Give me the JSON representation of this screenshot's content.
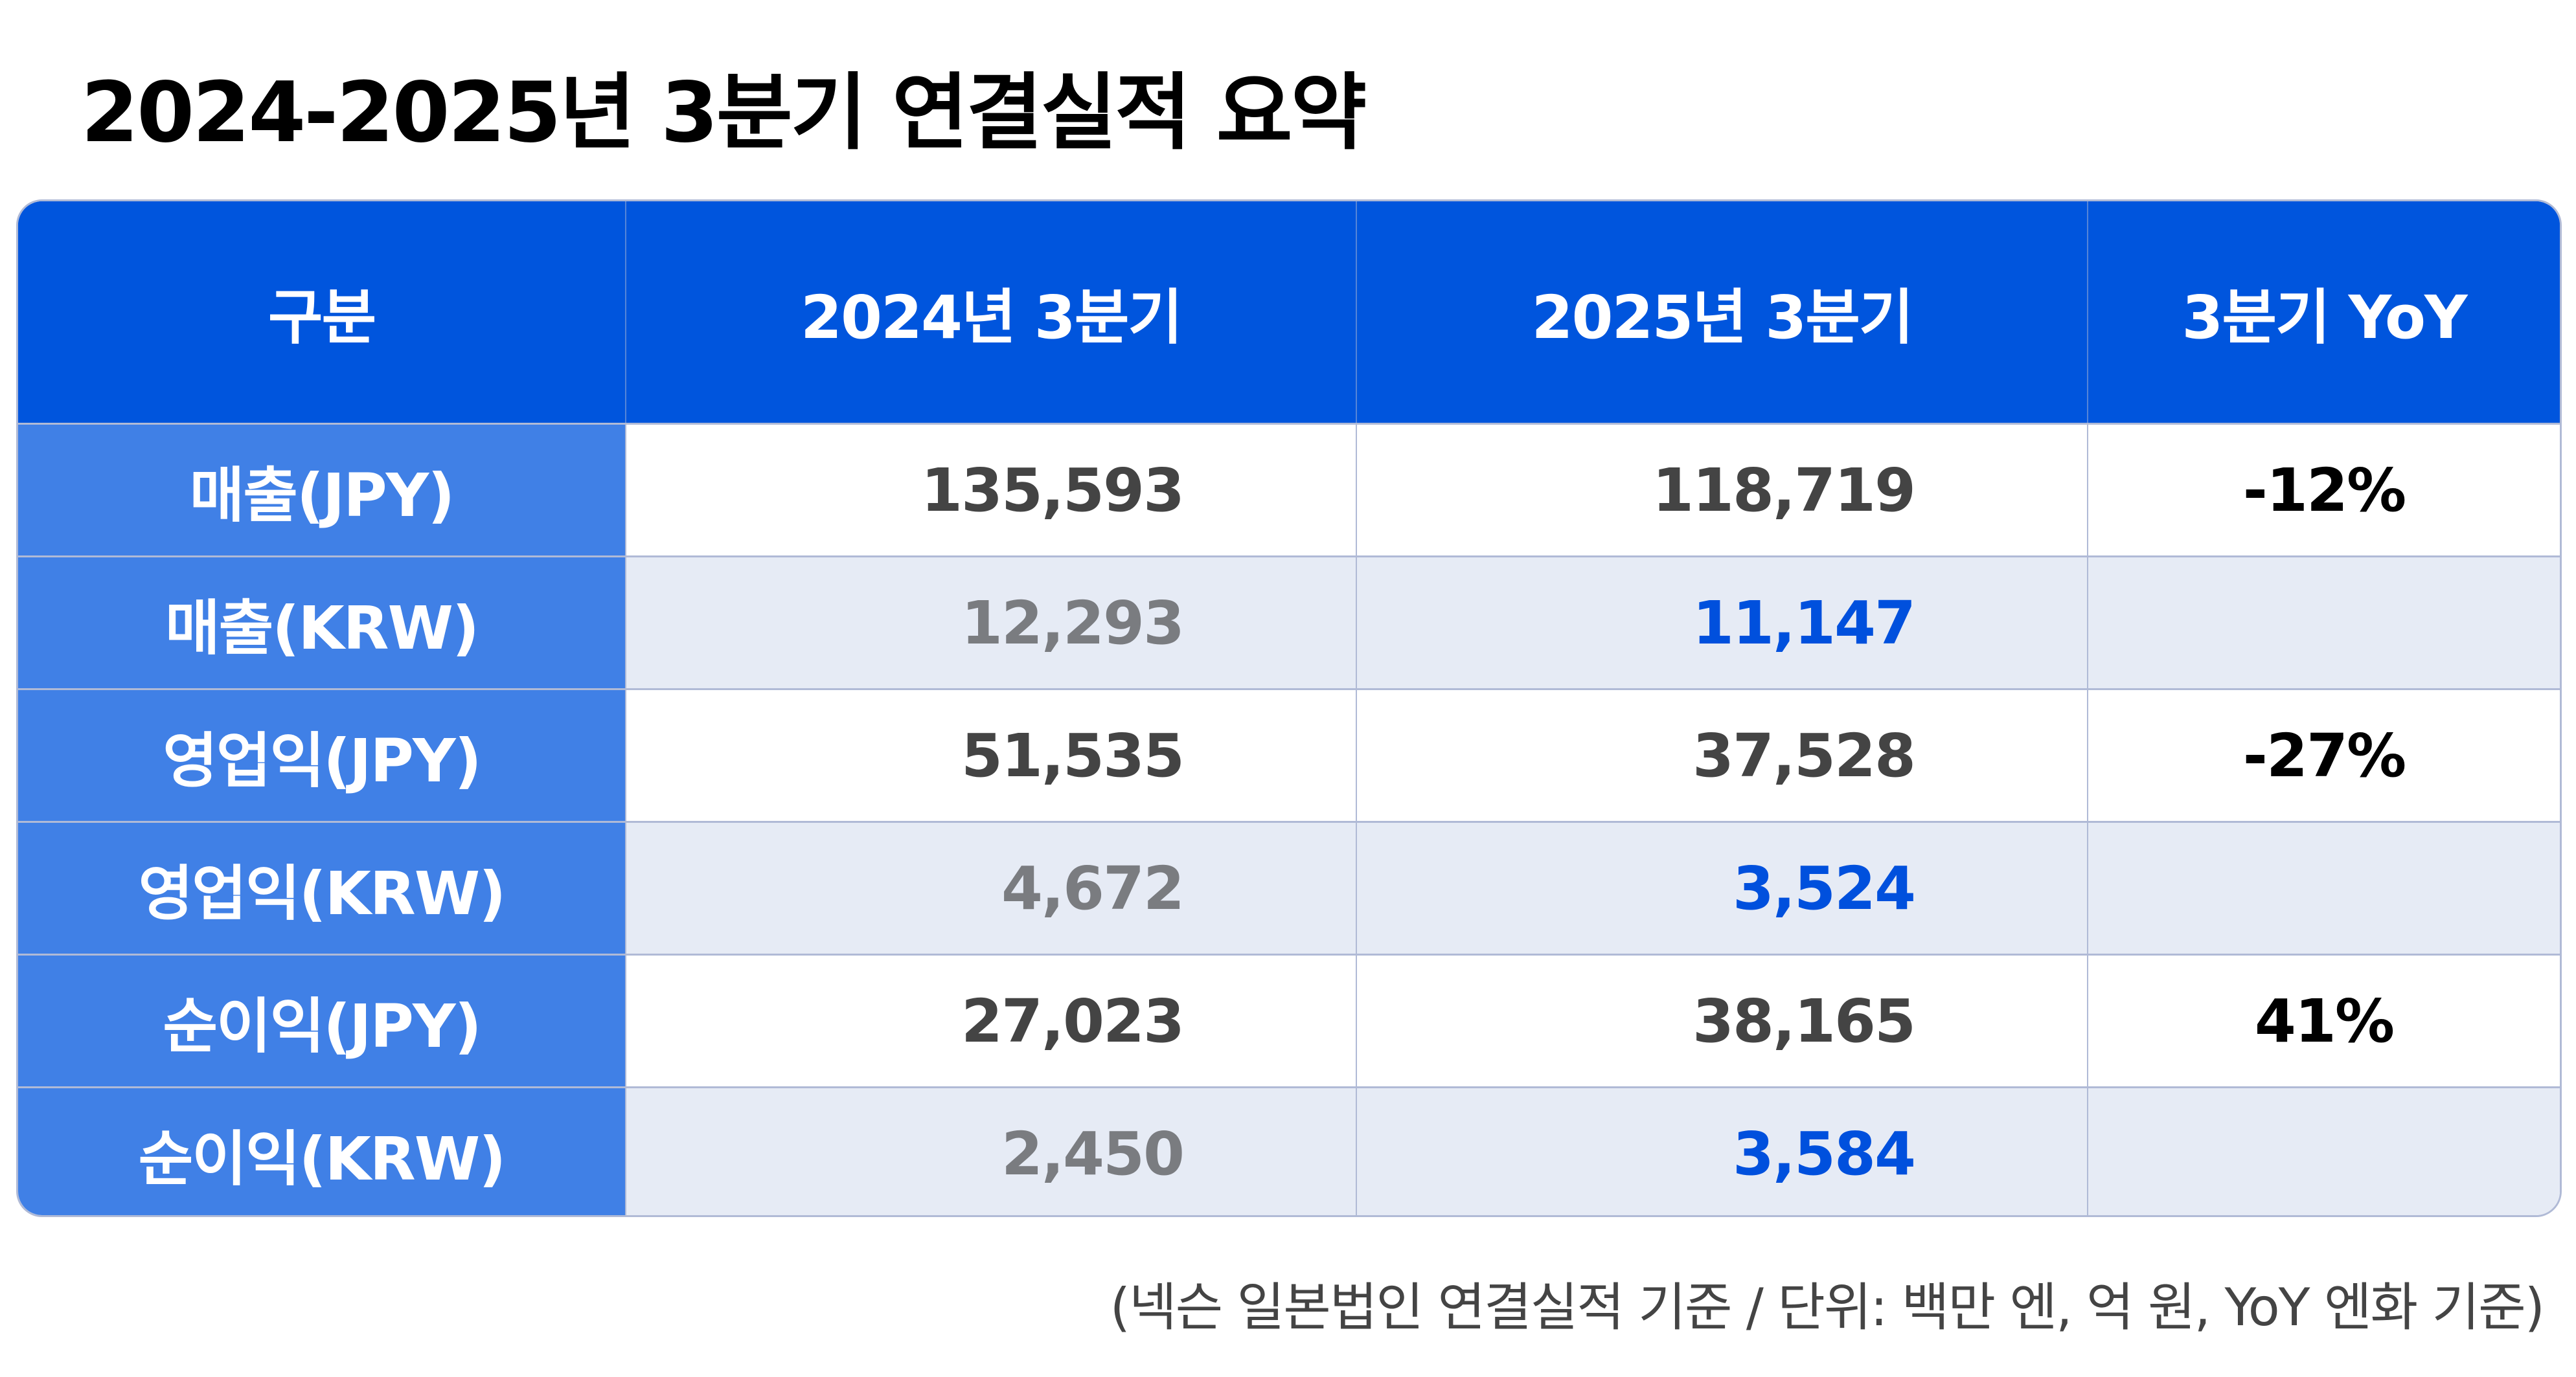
{
  "title": "2024-2025년 3분기 연결실적 요약",
  "table": {
    "headers": [
      "구분",
      "2024년 3분기",
      "2025년 3분기",
      "3분기 YoY"
    ],
    "rows": [
      {
        "label": "매출(JPY)",
        "q3_2024": "135,593",
        "q3_2025": "118,719",
        "yoy": "-12%"
      },
      {
        "label": "매출(KRW)",
        "q3_2024": "12,293",
        "q3_2025": "11,147",
        "yoy": ""
      },
      {
        "label": "영업익(JPY)",
        "q3_2024": "51,535",
        "q3_2025": "37,528",
        "yoy": "-27%"
      },
      {
        "label": "영업익(KRW)",
        "q3_2024": "4,672",
        "q3_2025": "3,524",
        "yoy": ""
      },
      {
        "label": "순이익(JPY)",
        "q3_2024": "27,023",
        "q3_2025": "38,165",
        "yoy": "41%"
      },
      {
        "label": "순이익(KRW)",
        "q3_2024": "2,450",
        "q3_2025": "3,584",
        "yoy": ""
      }
    ]
  },
  "footnote": "(넥슨 일본법인 연결실적 기준 / 단위: 백만 엔, 억 원, YoY 엔화 기준)",
  "colors": {
    "header": "#0055dd",
    "label_column": "#4080e6",
    "alt_row": "#e6ebf5",
    "krw_2025": "#0050dd"
  }
}
